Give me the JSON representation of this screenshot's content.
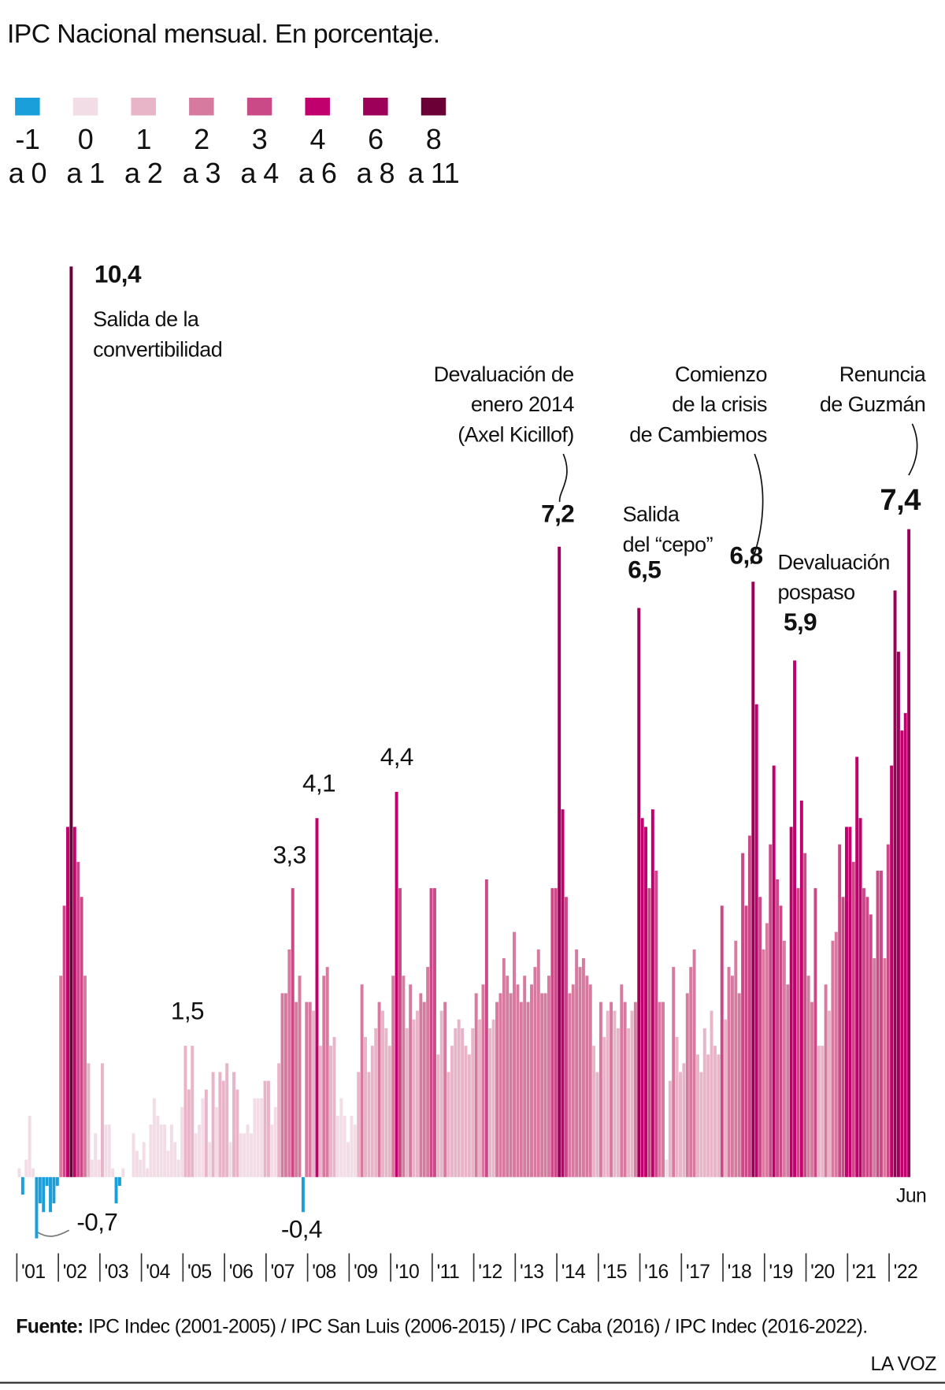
{
  "chart_data": {
    "type": "bar",
    "title": "IPC Nacional mensual. En porcentaje.",
    "color_scale": {
      "breaks": [
        -1,
        0,
        1,
        2,
        3,
        4,
        6,
        8,
        11
      ],
      "to_labels": [
        "a 0",
        "a 1",
        "a 2",
        "a 3",
        "a 4",
        "a 6",
        "a 8",
        "a 11"
      ],
      "colors": [
        "#1a9fdb",
        "#f2dde6",
        "#e8b4c8",
        "#d67a9f",
        "#c94a87",
        "#c2006d",
        "#9c0059",
        "#6a0036"
      ]
    },
    "years": [
      {
        "label": "'01",
        "values": [
          0.1,
          -0.2,
          0.2,
          0.7,
          0.1,
          -0.7,
          -0.3,
          -0.4,
          -0.1,
          -0.4,
          -0.3,
          -0.1
        ],
        "value_labels": [
          null,
          null,
          null,
          null,
          null,
          "-0,7",
          null,
          null,
          null,
          null,
          null,
          null
        ]
      },
      {
        "label": "'02",
        "values": [
          2.3,
          3.1,
          4.0,
          10.4,
          4.0,
          3.6,
          3.2,
          2.3,
          1.3,
          0.2,
          0.5,
          0.2
        ],
        "value_labels": [
          null,
          null,
          null,
          "10,4",
          null,
          null,
          null,
          null,
          null,
          null,
          null,
          null
        ]
      },
      {
        "label": "'03",
        "values": [
          1.3,
          0.6,
          0.6,
          0.1,
          -0.3,
          -0.1,
          0.1,
          0.0,
          0.0,
          0.5,
          0.3,
          0.2
        ]
      },
      {
        "label": "'04",
        "values": [
          0.4,
          0.1,
          0.6,
          0.9,
          0.7,
          0.6,
          0.6,
          0.3,
          0.6,
          0.4,
          0.2,
          0.8
        ]
      },
      {
        "label": "'05",
        "values": [
          1.5,
          1.0,
          1.5,
          0.5,
          0.6,
          0.9,
          1.0,
          0.4,
          1.2,
          0.8,
          1.2,
          1.1
        ],
        "value_labels": [
          "1,5",
          null,
          null,
          null,
          null,
          null,
          null,
          null,
          null,
          null,
          null,
          null
        ]
      },
      {
        "label": "'06",
        "values": [
          1.3,
          0.4,
          1.2,
          1.0,
          0.5,
          0.5,
          0.6,
          0.5,
          0.9,
          0.9,
          0.9,
          1.1
        ]
      },
      {
        "label": "'07",
        "values": [
          1.1,
          0.6,
          0.8,
          1.3,
          2.1,
          2.1,
          2.6,
          3.3,
          2.0,
          2.3,
          -0.4,
          2.0
        ],
        "value_labels": [
          null,
          null,
          null,
          null,
          null,
          null,
          null,
          "3,3",
          null,
          null,
          "-0,4",
          null
        ]
      },
      {
        "label": "'08",
        "values": [
          2.0,
          1.9,
          4.1,
          1.5,
          2.3,
          2.4,
          1.5,
          1.6,
          0.7,
          0.9,
          0.7,
          0.4
        ],
        "value_labels": [
          null,
          null,
          "4,1",
          null,
          null,
          null,
          null,
          null,
          null,
          null,
          null,
          null
        ]
      },
      {
        "label": "'09",
        "values": [
          0.7,
          0.6,
          1.2,
          2.2,
          1.6,
          1.2,
          1.5,
          1.7,
          2.0,
          1.9,
          1.7,
          1.5
        ]
      },
      {
        "label": "'10",
        "values": [
          2.3,
          4.4,
          3.3,
          2.3,
          1.7,
          2.2,
          1.8,
          1.9,
          2.1,
          2.0,
          2.4,
          3.3
        ],
        "value_labels": [
          null,
          "4,4",
          null,
          null,
          null,
          null,
          null,
          null,
          null,
          null,
          null,
          null
        ]
      },
      {
        "label": "'11",
        "values": [
          3.3,
          1.4,
          1.9,
          2.0,
          1.2,
          1.5,
          1.7,
          1.8,
          1.7,
          1.5,
          1.4,
          1.7
        ]
      },
      {
        "label": "'12",
        "values": [
          2.1,
          1.8,
          2.2,
          3.4,
          1.7,
          1.8,
          2.0,
          2.1,
          2.5,
          2.3,
          2.1,
          2.8
        ]
      },
      {
        "label": "'13",
        "values": [
          2.2,
          2.0,
          2.3,
          2.0,
          2.2,
          2.4,
          2.6,
          2.1,
          2.1,
          2.3,
          3.3,
          3.3
        ]
      },
      {
        "label": "'14",
        "values": [
          7.2,
          4.2,
          3.2,
          2.1,
          2.2,
          2.6,
          2.4,
          2.5,
          2.3,
          2.2,
          1.5,
          1.2
        ],
        "value_labels": [
          "7,2",
          null,
          null,
          null,
          null,
          null,
          null,
          null,
          null,
          null,
          null,
          null
        ]
      },
      {
        "label": "'15",
        "values": [
          2.0,
          1.6,
          1.9,
          2.0,
          1.9,
          1.7,
          2.2,
          2.0,
          1.7,
          1.9,
          2.0,
          6.5
        ],
        "value_labels": [
          null,
          null,
          null,
          null,
          null,
          null,
          null,
          null,
          null,
          null,
          null,
          "6,5"
        ]
      },
      {
        "label": "'16",
        "values": [
          4.1,
          4.0,
          3.3,
          4.2,
          3.5,
          2.0,
          2.0,
          0.2,
          1.1,
          2.4,
          1.6,
          1.2
        ]
      },
      {
        "label": "'17",
        "values": [
          1.3,
          2.1,
          2.4,
          2.6,
          1.4,
          1.2,
          1.7,
          1.4,
          1.9,
          1.5,
          1.4,
          3.1
        ]
      },
      {
        "label": "'18",
        "values": [
          1.8,
          2.4,
          2.3,
          2.7,
          2.1,
          3.7,
          3.1,
          3.9,
          6.8,
          5.4,
          3.2,
          2.6
        ],
        "value_labels": [
          null,
          null,
          null,
          null,
          null,
          null,
          null,
          null,
          "6,8",
          null,
          null,
          null
        ]
      },
      {
        "label": "'19",
        "values": [
          2.9,
          3.8,
          4.7,
          3.4,
          3.1,
          2.7,
          2.2,
          4.0,
          5.9,
          3.3,
          4.3,
          3.7
        ],
        "value_labels": [
          null,
          null,
          null,
          null,
          null,
          null,
          null,
          null,
          "5,9",
          null,
          null,
          null
        ]
      },
      {
        "label": "'20",
        "values": [
          2.3,
          2.0,
          3.3,
          1.5,
          1.5,
          2.2,
          1.9,
          2.7,
          2.8,
          3.8,
          3.2,
          4.0
        ]
      },
      {
        "label": "'21",
        "values": [
          4.0,
          3.6,
          4.8,
          4.1,
          3.3,
          3.2,
          3.0,
          2.5,
          3.5,
          3.5,
          2.5,
          3.8
        ]
      },
      {
        "label": "'22",
        "values": [
          4.7,
          6.7,
          6.0,
          5.1,
          5.3,
          7.4
        ],
        "value_labels": [
          null,
          null,
          null,
          null,
          null,
          "7,4"
        ]
      }
    ],
    "end_label": "Jun",
    "annotations": [
      {
        "lines": [
          "Salida de la",
          "convertibilidad"
        ]
      },
      {
        "lines": [
          "Devaluación de",
          "enero 2014",
          "(Axel Kicillof)"
        ]
      },
      {
        "lines": [
          "Salida",
          "del “cepo”"
        ]
      },
      {
        "lines": [
          "Comienzo",
          "de la crisis",
          "de Cambiemos"
        ]
      },
      {
        "lines": [
          "Devaluación",
          "pospaso"
        ]
      },
      {
        "lines": [
          "Renuncia",
          "de Guzmán"
        ]
      }
    ],
    "source": {
      "label": "Fuente:",
      "text": "IPC Indec (2001-2005) / IPC San Luis (2006-2015) / IPC Caba (2016) / IPC Indec (2016-2022)."
    },
    "brand": "LA VOZ"
  }
}
